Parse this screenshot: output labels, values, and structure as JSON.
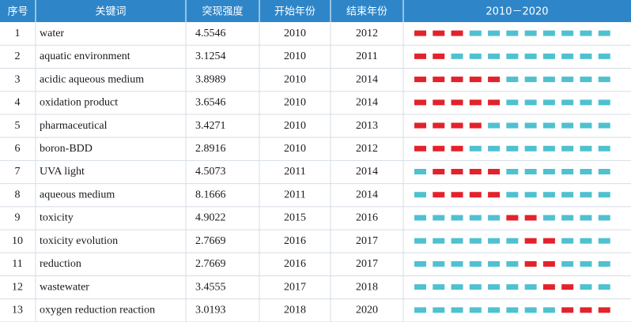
{
  "table": {
    "header": [
      "序号",
      "关键词",
      "突现强度",
      "开始年份",
      "结束年份"
    ],
    "timeline": {
      "label": "2010－2020",
      "start": 2010,
      "end": 2020
    },
    "rows": [
      [
        1,
        "water",
        4.5546,
        2010,
        2012
      ],
      [
        2,
        "aquatic environment",
        3.1254,
        2010,
        2011
      ],
      [
        3,
        "acidic aqueous medium",
        3.8989,
        2010,
        2014
      ],
      [
        4,
        "oxidation product",
        3.6546,
        2010,
        2014
      ],
      [
        5,
        "pharmaceutical",
        3.4271,
        2010,
        2013
      ],
      [
        6,
        "boron-BDD",
        2.8916,
        2010,
        2012
      ],
      [
        7,
        "UVA light",
        4.5073,
        2011,
        2014
      ],
      [
        8,
        "aqueous medium",
        8.1666,
        2011,
        2014
      ],
      [
        9,
        "toxicity",
        4.9022,
        2015,
        2016
      ],
      [
        10,
        "toxicity evolution",
        2.7669,
        2016,
        2017
      ],
      [
        11,
        "reduction",
        2.7669,
        2016,
        2017
      ],
      [
        12,
        "wastewater",
        3.4555,
        2017,
        2018
      ],
      [
        13,
        "oxygen reduction reaction",
        3.0193,
        2018,
        2020
      ]
    ]
  }
}
